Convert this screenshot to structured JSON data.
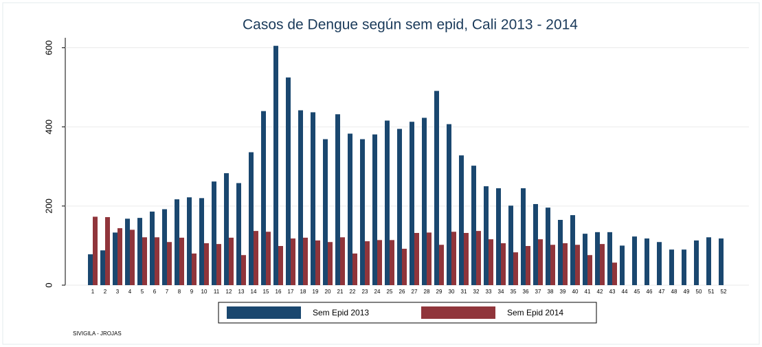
{
  "chart_data": {
    "type": "bar",
    "title": "Casos de Dengue según sem epid, Cali 2013 - 2014",
    "categories": [
      "1",
      "2",
      "3",
      "4",
      "5",
      "6",
      "7",
      "8",
      "9",
      "10",
      "11",
      "12",
      "13",
      "14",
      "15",
      "16",
      "17",
      "18",
      "19",
      "20",
      "21",
      "22",
      "23",
      "24",
      "25",
      "26",
      "27",
      "28",
      "29",
      "30",
      "31",
      "32",
      "33",
      "34",
      "35",
      "36",
      "37",
      "38",
      "39",
      "40",
      "41",
      "42",
      "43",
      "44",
      "45",
      "46",
      "47",
      "48",
      "49",
      "50",
      "51",
      "52"
    ],
    "series": [
      {
        "name": "Sem Epid 2013",
        "color": "#1a476f",
        "values": [
          78,
          88,
          133,
          168,
          170,
          186,
          192,
          217,
          222,
          220,
          262,
          283,
          258,
          336,
          440,
          605,
          525,
          442,
          437,
          369,
          432,
          383,
          369,
          381,
          416,
          395,
          413,
          423,
          491,
          407,
          328,
          302,
          250,
          245,
          201,
          245,
          205,
          196,
          165,
          177,
          130,
          134,
          134,
          100,
          123,
          118,
          109,
          90,
          90,
          113,
          121,
          118
        ]
      },
      {
        "name": "Sem Epid 2014",
        "color": "#90353b",
        "values": [
          173,
          172,
          144,
          140,
          121,
          121,
          109,
          120,
          80,
          106,
          104,
          120,
          76,
          137,
          135,
          99,
          118,
          120,
          113,
          109,
          121,
          80,
          111,
          114,
          114,
          92,
          132,
          133,
          102,
          135,
          132,
          137,
          116,
          106,
          83,
          99,
          116,
          102,
          106,
          102,
          76,
          104,
          57,
          null,
          null,
          null,
          null,
          null,
          null,
          null,
          null,
          null
        ]
      }
    ],
    "ylim": [
      0,
      660
    ],
    "yticks": [
      0,
      200,
      400,
      600
    ],
    "grid": true,
    "footnote": "SIVIGILA - JROJAS"
  }
}
